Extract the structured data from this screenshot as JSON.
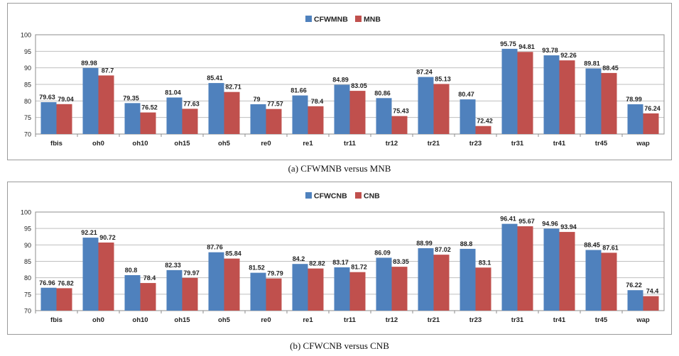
{
  "colors": {
    "series_a": "#4F81BD",
    "series_b": "#C0504D",
    "grid": "#BFBFBF",
    "frame": "#9A9A9A"
  },
  "chart_data": [
    {
      "type": "bar",
      "caption": "(a) CFWMNB versus MNB",
      "legend_position": "top",
      "grid": true,
      "ylim": [
        70,
        100
      ],
      "yticks": [
        70,
        75,
        80,
        85,
        90,
        95,
        100
      ],
      "categories": [
        "fbis",
        "oh0",
        "oh10",
        "oh15",
        "oh5",
        "re0",
        "re1",
        "tr11",
        "tr12",
        "tr21",
        "tr23",
        "tr31",
        "tr41",
        "tr45",
        "wap"
      ],
      "series": [
        {
          "name": "CFWMNB",
          "values": [
            79.63,
            89.98,
            79.35,
            81.04,
            85.41,
            79,
            81.66,
            84.89,
            80.86,
            87.24,
            80.47,
            95.75,
            93.78,
            89.81,
            78.99
          ]
        },
        {
          "name": "MNB",
          "values": [
            79.04,
            87.7,
            76.52,
            77.63,
            82.71,
            77.57,
            78.4,
            83.05,
            75.43,
            85.13,
            72.42,
            94.81,
            92.26,
            88.45,
            76.24
          ]
        }
      ]
    },
    {
      "type": "bar",
      "caption": "(b) CFWCNB versus CNB",
      "legend_position": "top",
      "grid": true,
      "ylim": [
        70,
        100
      ],
      "yticks": [
        70,
        75,
        80,
        85,
        90,
        95,
        100
      ],
      "categories": [
        "fbis",
        "oh0",
        "oh10",
        "oh15",
        "oh5",
        "re0",
        "re1",
        "tr11",
        "tr12",
        "tr21",
        "tr23",
        "tr31",
        "tr41",
        "tr45",
        "wap"
      ],
      "series": [
        {
          "name": "CFWCNB",
          "values": [
            76.96,
            92.21,
            80.8,
            82.33,
            87.76,
            81.52,
            84.2,
            83.17,
            86.09,
            88.99,
            88.8,
            96.41,
            94.96,
            88.45,
            76.22
          ]
        },
        {
          "name": "CNB",
          "values": [
            76.82,
            90.72,
            78.4,
            79.97,
            85.84,
            79.79,
            82.82,
            81.72,
            83.35,
            87.02,
            83.1,
            95.67,
            93.94,
            87.61,
            74.4
          ]
        }
      ]
    }
  ]
}
